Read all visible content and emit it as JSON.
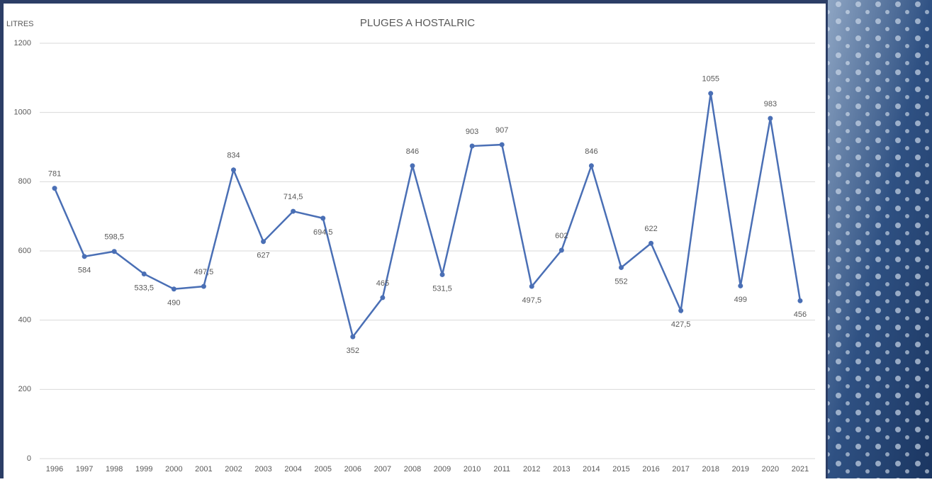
{
  "chart_data": {
    "type": "line",
    "title": "PLUGES A HOSTALRIC",
    "y_label": "LITRES",
    "categories": [
      "1996",
      "1997",
      "1998",
      "1999",
      "2000",
      "2001",
      "2002",
      "2003",
      "2004",
      "2005",
      "2006",
      "2007",
      "2008",
      "2009",
      "2010",
      "2011",
      "2012",
      "2013",
      "2014",
      "2015",
      "2016",
      "2017",
      "2018",
      "2019",
      "2020",
      "2021"
    ],
    "series": [
      {
        "name": "LITRES",
        "color": "#4a6fb5",
        "values": [
          781,
          584,
          598.5,
          533.5,
          490,
          497.5,
          834,
          627,
          714.5,
          694.5,
          352,
          465,
          846,
          531.5,
          903,
          907,
          497.5,
          602,
          846,
          552,
          622,
          427.5,
          1055,
          499,
          983,
          456
        ],
        "value_labels": [
          "781",
          "584",
          "598,5",
          "533,5",
          "490",
          "497,5",
          "834",
          "627",
          "714,5",
          "694,5",
          "352",
          "465",
          "846",
          "531,5",
          "903",
          "907",
          "497,5",
          "602",
          "846",
          "552",
          "622",
          "427,5",
          "1055",
          "499",
          "983",
          "456"
        ]
      }
    ],
    "ylim": [
      0,
      1200
    ],
    "yticks": [
      0,
      200,
      400,
      600,
      800,
      1000,
      1200
    ],
    "grid": true
  }
}
